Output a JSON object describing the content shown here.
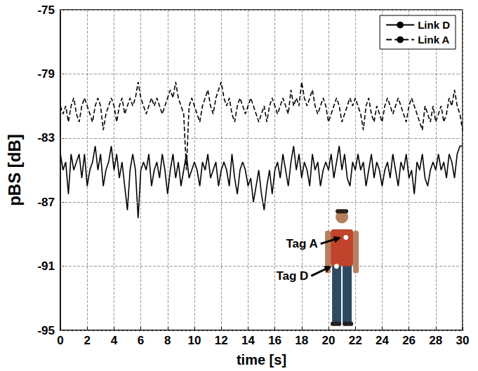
{
  "chart_data": {
    "type": "line",
    "x_label": "time [s]",
    "y_label": "pBS [dB]",
    "x": [
      0,
      0.2,
      0.4,
      0.6,
      0.8,
      1,
      1.2,
      1.4,
      1.6,
      1.8,
      2,
      2.2,
      2.4,
      2.6,
      2.8,
      3,
      3.2,
      3.4,
      3.6,
      3.8,
      4,
      4.2,
      4.4,
      4.6,
      4.8,
      5,
      5.2,
      5.4,
      5.6,
      5.8,
      6,
      6.2,
      6.4,
      6.6,
      6.8,
      7,
      7.2,
      7.4,
      7.6,
      7.8,
      8,
      8.2,
      8.4,
      8.6,
      8.8,
      9,
      9.2,
      9.4,
      9.6,
      9.8,
      10,
      10.2,
      10.4,
      10.6,
      10.8,
      11,
      11.2,
      11.4,
      11.6,
      11.8,
      12,
      12.2,
      12.4,
      12.6,
      12.8,
      13,
      13.2,
      13.4,
      13.6,
      13.8,
      14,
      14.2,
      14.4,
      14.6,
      14.8,
      15,
      15.2,
      15.4,
      15.6,
      15.8,
      16,
      16.2,
      16.4,
      16.6,
      16.8,
      17,
      17.2,
      17.4,
      17.6,
      17.8,
      18,
      18.2,
      18.4,
      18.6,
      18.8,
      19,
      19.2,
      19.4,
      19.6,
      19.8,
      20,
      20.2,
      20.4,
      20.6,
      20.8,
      21,
      21.2,
      21.4,
      21.6,
      21.8,
      22,
      22.2,
      22.4,
      22.6,
      22.8,
      23,
      23.2,
      23.4,
      23.6,
      23.8,
      24,
      24.2,
      24.4,
      24.6,
      24.8,
      25,
      25.2,
      25.4,
      25.6,
      25.8,
      26,
      26.2,
      26.4,
      26.6,
      26.8,
      27,
      27.2,
      27.4,
      27.6,
      27.8,
      28,
      28.2,
      28.4,
      28.6,
      28.8,
      29,
      29.2,
      29.4,
      29.6,
      29.8,
      30
    ],
    "series": [
      {
        "name": "Link D",
        "color": "#000000",
        "line_style": "solid",
        "values": [
          -84,
          -85,
          -84.5,
          -86.5,
          -84,
          -85,
          -84.5,
          -84,
          -85.5,
          -84,
          -86,
          -85,
          -84.5,
          -83.5,
          -85,
          -84,
          -86,
          -85,
          -84.5,
          -83.5,
          -85,
          -84,
          -85.5,
          -84.5,
          -86,
          -87.5,
          -85,
          -84,
          -85,
          -88,
          -85,
          -84.5,
          -85,
          -84,
          -86,
          -85,
          -84.5,
          -85.5,
          -84,
          -85,
          -86.5,
          -85,
          -84,
          -85.5,
          -84.5,
          -86,
          -85,
          -84,
          -85.5,
          -85,
          -84.5,
          -85,
          -86,
          -84.5,
          -85,
          -84,
          -85.5,
          -85,
          -84.5,
          -86,
          -85,
          -84.5,
          -85,
          -86,
          -84,
          -85.5,
          -86.5,
          -85,
          -84.5,
          -85,
          -86,
          -85.5,
          -87,
          -86,
          -85,
          -86.5,
          -87.5,
          -86,
          -85,
          -86.5,
          -85,
          -84.5,
          -85.5,
          -84,
          -85,
          -86,
          -84.5,
          -83.5,
          -85,
          -84,
          -85.5,
          -84.5,
          -85,
          -86,
          -84,
          -85,
          -84.5,
          -86,
          -85,
          -84.5,
          -85,
          -84,
          -85.5,
          -84.5,
          -83.5,
          -85,
          -84,
          -85.5,
          -86,
          -84.5,
          -85,
          -84,
          -85,
          -84.5,
          -86,
          -85,
          -84,
          -85.5,
          -84.5,
          -85,
          -86,
          -85,
          -84.5,
          -85.5,
          -84,
          -85,
          -86,
          -84.5,
          -85,
          -84,
          -85.5,
          -85,
          -86.5,
          -84.5,
          -85,
          -84,
          -85.5,
          -86,
          -85,
          -84.5,
          -85,
          -84,
          -85,
          -84.5,
          -85.5,
          -84,
          -84.5,
          -85.5,
          -84,
          -83.5,
          -83.5
        ]
      },
      {
        "name": "Link A",
        "color": "#000000",
        "line_style": "dashed",
        "values": [
          -81,
          -81.5,
          -81,
          -82,
          -81,
          -80.5,
          -81.5,
          -82,
          -81,
          -80.5,
          -81,
          -81.5,
          -82,
          -81,
          -80.5,
          -81,
          -82.5,
          -81.5,
          -81,
          -80.5,
          -81,
          -82,
          -81,
          -80.5,
          -81.5,
          -81,
          -80.5,
          -81,
          -80.5,
          -79.5,
          -80.5,
          -81,
          -81.5,
          -81,
          -80.5,
          -81,
          -80.5,
          -81,
          -81.5,
          -81,
          -80.5,
          -80,
          -80.5,
          -79.5,
          -80.5,
          -81,
          -81.5,
          -85,
          -81,
          -80.5,
          -81,
          -81.5,
          -82,
          -81,
          -80.5,
          -80,
          -81,
          -81.5,
          -80.5,
          -80,
          -79.5,
          -80.5,
          -81,
          -80.5,
          -81.5,
          -82,
          -81,
          -80.5,
          -81,
          -81.5,
          -81,
          -80.5,
          -81,
          -81.5,
          -82,
          -81.5,
          -81,
          -82,
          -81,
          -80.5,
          -81,
          -81.5,
          -81,
          -80.5,
          -81,
          -81.5,
          -80,
          -81,
          -80.5,
          -81,
          -79.5,
          -80.5,
          -81,
          -80.5,
          -80,
          -81,
          -81.5,
          -81,
          -80.5,
          -81,
          -82,
          -81.5,
          -81,
          -80.5,
          -81,
          -82,
          -81.5,
          -81,
          -80.5,
          -81,
          -80.5,
          -81,
          -81.5,
          -82.5,
          -81,
          -80.5,
          -81.5,
          -82,
          -81,
          -81.5,
          -82,
          -81,
          -80.5,
          -81,
          -81.5,
          -81,
          -80.5,
          -81,
          -81.5,
          -82,
          -81,
          -80.5,
          -81,
          -81.5,
          -82,
          -82.5,
          -81,
          -81.5,
          -82,
          -81,
          -82,
          -81.5,
          -81,
          -82,
          -81.5,
          -80.5,
          -81,
          -80,
          -81,
          -81.5,
          -82.5
        ]
      }
    ],
    "xlim": [
      0,
      30
    ],
    "xticks": [
      0,
      2,
      4,
      6,
      8,
      10,
      12,
      14,
      16,
      18,
      20,
      22,
      24,
      26,
      28,
      30
    ],
    "ylim": [
      -95,
      -75
    ],
    "yticks": [
      -95,
      -91,
      -87,
      -83,
      -79,
      -75
    ],
    "grid": true,
    "legend": "upper right",
    "annotations": [
      "Tag A",
      "Tag D"
    ]
  }
}
